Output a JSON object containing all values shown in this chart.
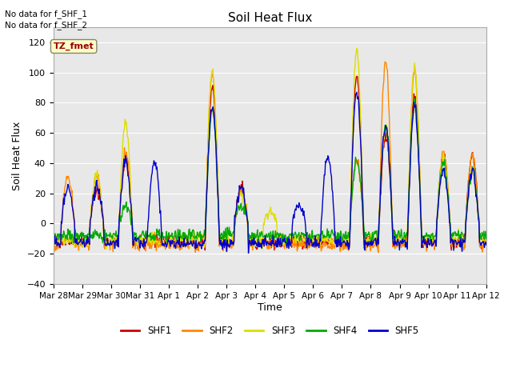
{
  "title": "Soil Heat Flux",
  "ylabel": "Soil Heat Flux",
  "xlabel": "Time",
  "ylim": [
    -40,
    130
  ],
  "yticks": [
    -40,
    -20,
    0,
    20,
    40,
    60,
    80,
    100,
    120
  ],
  "colors": {
    "SHF1": "#cc0000",
    "SHF2": "#ff8800",
    "SHF3": "#dddd00",
    "SHF4": "#00aa00",
    "SHF5": "#0000cc"
  },
  "legend_labels": [
    "SHF1",
    "SHF2",
    "SHF3",
    "SHF4",
    "SHF5"
  ],
  "text_annotations": [
    "No data for f_SHF_1",
    "No data for f_SHF_2"
  ],
  "tz_label": "TZ_fmet",
  "background_color": "#e8e8e8",
  "tick_labels": [
    "Mar 28",
    "Mar 29",
    "Mar 30",
    "Mar 31",
    "Apr 1",
    "Apr 2",
    "Apr 3",
    "Apr 4",
    "Apr 5",
    "Apr 6",
    "Apr 7",
    "Apr 8",
    "Apr 9",
    "Apr 10",
    "Apr 11",
    "Apr 12"
  ],
  "linewidth": 1.0,
  "n_days": 15,
  "pts_per_day": 48
}
